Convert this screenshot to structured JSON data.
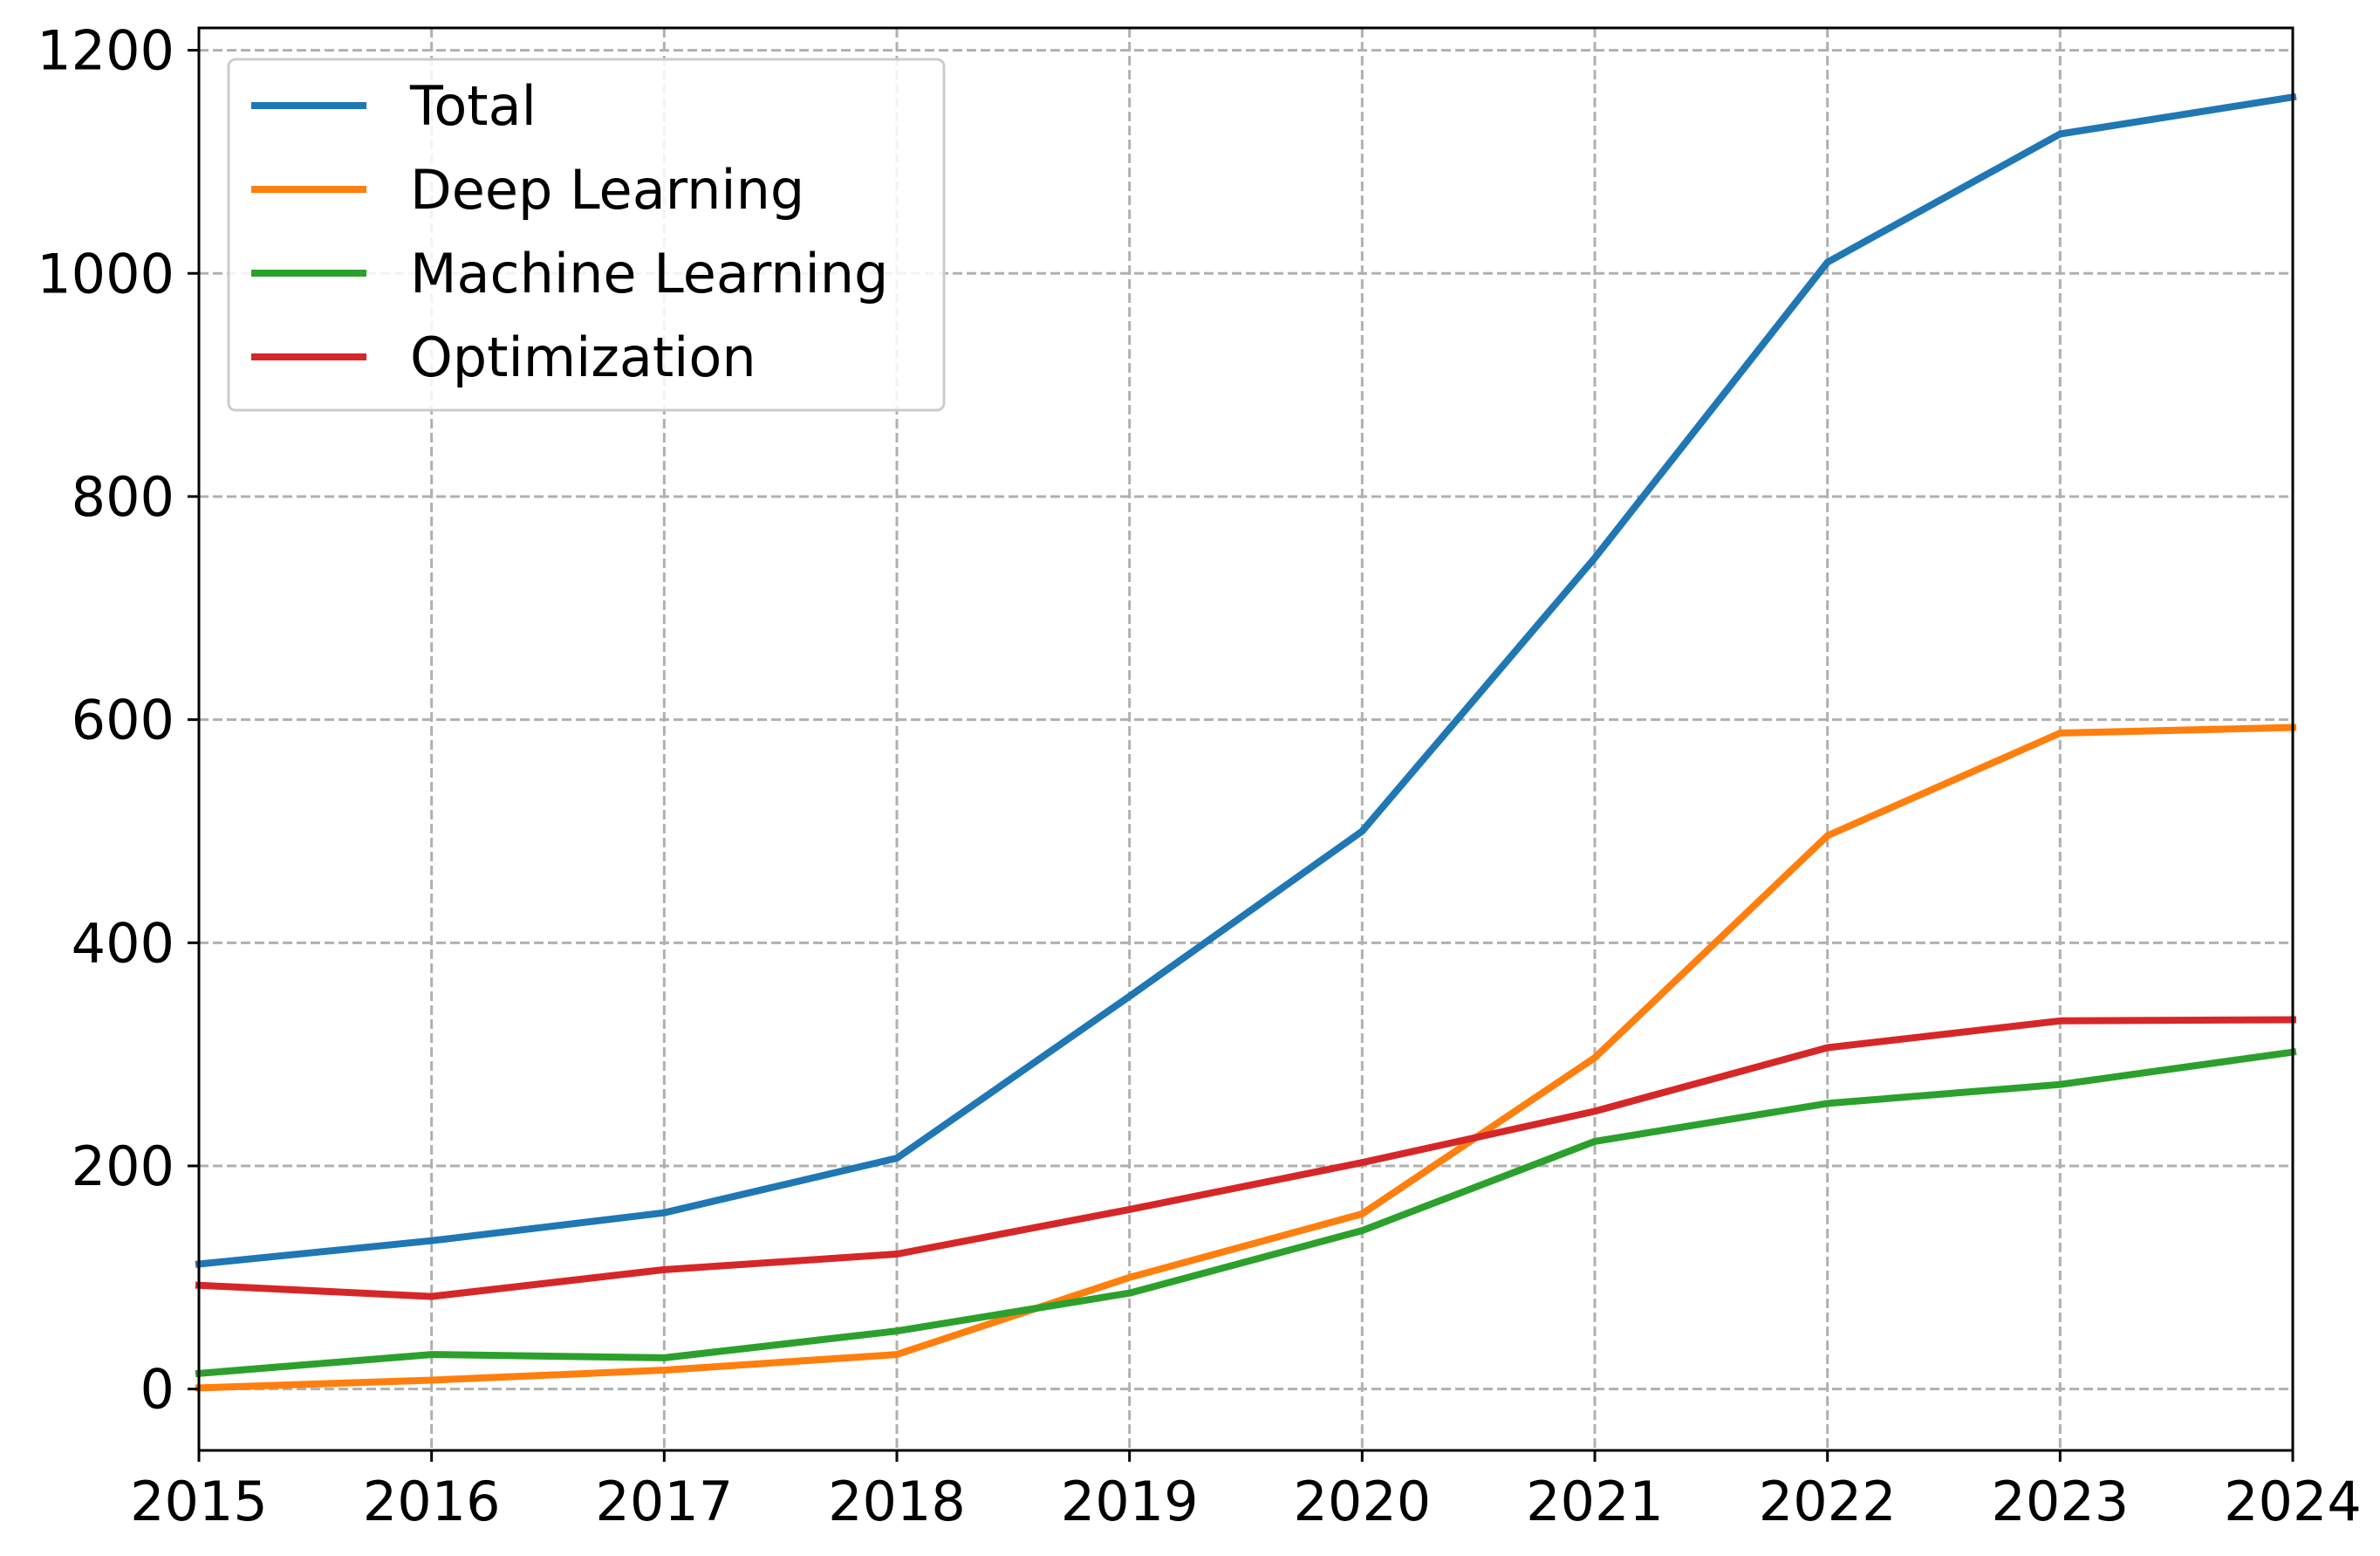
{
  "chart_data": {
    "type": "line",
    "title": "",
    "xlabel": "",
    "ylabel": "",
    "x": [
      2015,
      2016,
      2017,
      2018,
      2019,
      2020,
      2021,
      2022,
      2023,
      2024
    ],
    "xlim": [
      2015,
      2024
    ],
    "ylim": [
      -55,
      1220
    ],
    "xticks": [
      "2015",
      "2016",
      "2017",
      "2018",
      "2019",
      "2020",
      "2021",
      "2022",
      "2023",
      "2024"
    ],
    "yticks": [
      0,
      200,
      400,
      600,
      800,
      1000,
      1200
    ],
    "grid": true,
    "legend_position": "top-left",
    "series": [
      {
        "name": "Total",
        "color": "#1f77b4",
        "values": [
          112,
          133,
          158,
          207,
          352,
          500,
          745,
          1010,
          1125,
          1158
        ]
      },
      {
        "name": "Deep Learning",
        "color": "#ff7f0e",
        "values": [
          1,
          8,
          17,
          31,
          100,
          157,
          297,
          496,
          588,
          593
        ]
      },
      {
        "name": "Machine Learning",
        "color": "#2ca02c",
        "values": [
          14,
          31,
          28,
          52,
          86,
          142,
          222,
          256,
          273,
          302
        ]
      },
      {
        "name": "Optimization",
        "color": "#d62728",
        "values": [
          93,
          83,
          107,
          121,
          161,
          203,
          249,
          306,
          330,
          331
        ]
      }
    ]
  }
}
